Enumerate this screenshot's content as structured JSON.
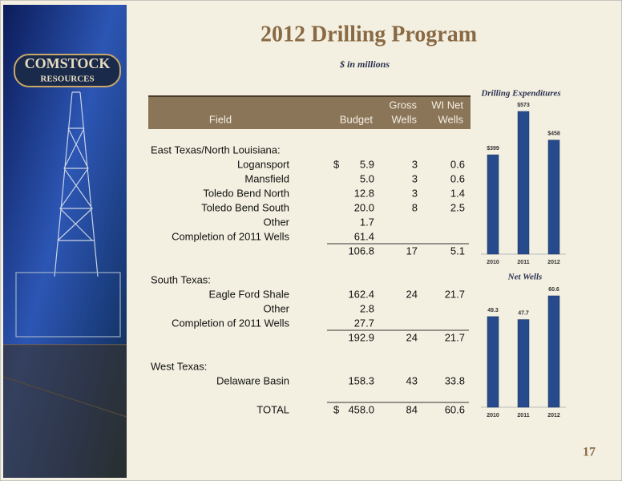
{
  "title": "2012 Drilling Program",
  "subtitle": "$ in millions",
  "logo": [
    "COMSTOCK",
    "RESOURCES"
  ],
  "page_number": "17",
  "table": {
    "header": [
      [
        "Field"
      ],
      [
        "Budget"
      ],
      [
        "Gross",
        "Wells"
      ],
      [
        "WI Net",
        "Wells"
      ]
    ],
    "rows": [
      {
        "heading": "East Texas/North Louisiana:"
      },
      {
        "field": "Logansport",
        "currency": "$",
        "budget": "5.9",
        "gross": "3",
        "net": "0.6"
      },
      {
        "field": "Mansfield",
        "budget": "5.0",
        "gross": "3",
        "net": "0.6"
      },
      {
        "field": "Toledo Bend North",
        "budget": "12.8",
        "gross": "3",
        "net": "1.4"
      },
      {
        "field": "Toledo Bend South",
        "budget": "20.0",
        "gross": "8",
        "net": "2.5"
      },
      {
        "field": "Other",
        "budget": "1.7"
      },
      {
        "field": "Completion of 2011 Wells",
        "budget": "61.4"
      },
      {
        "subtotal": true,
        "budget": "106.8",
        "gross": "17",
        "net": "5.1"
      },
      {
        "heading": "South Texas:"
      },
      {
        "field": "Eagle Ford Shale",
        "budget": "162.4",
        "gross": "24",
        "net": "21.7"
      },
      {
        "field": "Other",
        "budget": "2.8"
      },
      {
        "field": "Completion of 2011 Wells",
        "budget": "27.7"
      },
      {
        "subtotal": true,
        "budget": "192.9",
        "gross": "24",
        "net": "21.7"
      },
      {
        "heading": "West Texas:"
      },
      {
        "field": "Delaware Basin",
        "budget": "158.3",
        "gross": "43",
        "net": "33.8"
      },
      {
        "total": true,
        "field": "TOTAL",
        "currency": "$",
        "budget": "458.0",
        "gross": "84",
        "net": "60.6"
      }
    ]
  },
  "chart_data": [
    {
      "type": "bar",
      "title": "Drilling Expenditures",
      "categories": [
        "2010",
        "2011",
        "2012"
      ],
      "values": [
        399,
        573,
        458
      ],
      "value_labels": [
        "$399",
        "$573",
        "$458"
      ],
      "color": "#274a8c"
    },
    {
      "type": "bar",
      "title": "Net Wells",
      "categories": [
        "2010",
        "2011",
        "2012"
      ],
      "values": [
        49.3,
        47.7,
        60.6
      ],
      "color": "#274a8c"
    }
  ]
}
